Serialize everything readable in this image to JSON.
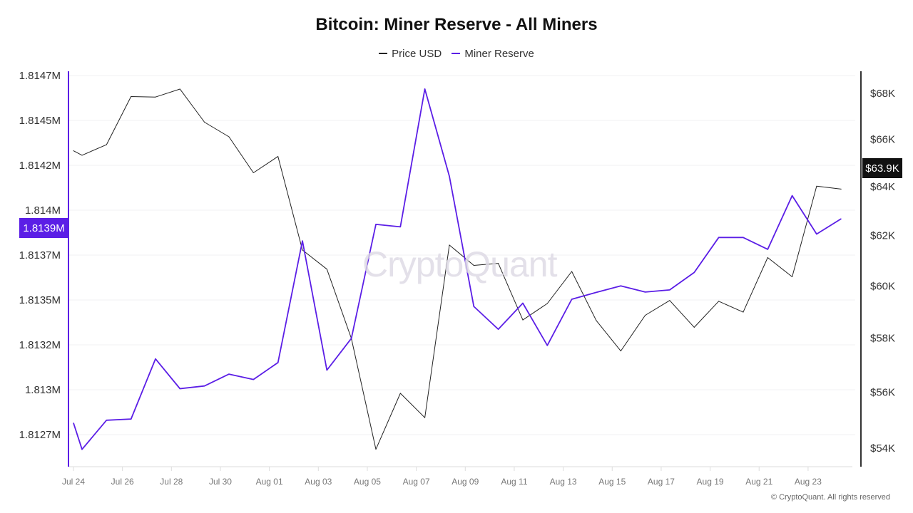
{
  "chart_data": {
    "type": "line",
    "title": "Bitcoin: Miner Reserve - All Miners",
    "legend": [
      "Price USD",
      "Miner Reserve"
    ],
    "legend_position": "top-center",
    "x_unit": "days since Jul 24",
    "x_tick_labels": [
      "Jul 24",
      "Jul 26",
      "Jul 28",
      "Jul 30",
      "Aug 01",
      "Aug 03",
      "Aug 05",
      "Aug 07",
      "Aug 09",
      "Aug 11",
      "Aug 13",
      "Aug 15",
      "Aug 17",
      "Aug 19",
      "Aug 21",
      "Aug 23"
    ],
    "left_axis": {
      "label": "Miner Reserve",
      "unit": "K BTC",
      "range": [
        1812.5,
        1814.85
      ],
      "ticks": [
        1812.75,
        1813.0,
        1813.25,
        1813.5,
        1813.75,
        1814.0,
        1814.25,
        1814.5,
        1814.75
      ],
      "tick_labels": [
        "1.8127M",
        "1.813M",
        "1.8132M",
        "1.8135M",
        "1.8137M",
        "1.814M",
        "1.8142M",
        "1.8145M",
        "1.8147M"
      ]
    },
    "right_axis": {
      "label": "Price USD",
      "scale": "log",
      "unit": "K USD",
      "range": [
        53.3,
        69.3
      ],
      "ticks": [
        54,
        56,
        58,
        60,
        62,
        64,
        66,
        68
      ],
      "tick_labels": [
        "$54K",
        "$56K",
        "$58K",
        "$60K",
        "$62K",
        "$64K",
        "$66K",
        "$68K"
      ]
    },
    "x": [
      0,
      0.35,
      1.35,
      2.35,
      3.35,
      4.35,
      5.35,
      6.35,
      7.35,
      8.35,
      9.35,
      10.35,
      11.35,
      12.35,
      13.35,
      14.35,
      15.35,
      16.35,
      17.35,
      18.35,
      19.35,
      20.35,
      21.35,
      22.35,
      23.35,
      24.35,
      25.35,
      26.35,
      27.35,
      28.35,
      29.35,
      30.35,
      31.35
    ],
    "series": [
      {
        "name": "Price USD",
        "axis": "right",
        "color": "#222222",
        "values": [
          65.51,
          65.32,
          65.77,
          67.86,
          67.84,
          68.19,
          66.74,
          66.11,
          64.58,
          65.27,
          61.42,
          60.66,
          57.99,
          53.96,
          55.96,
          55.08,
          61.62,
          60.81,
          60.89,
          58.69,
          59.32,
          60.57,
          58.67,
          57.52,
          58.87,
          59.44,
          58.41,
          59.41,
          58.99,
          61.12,
          60.36,
          64.02,
          63.9
        ]
      },
      {
        "name": "Miner Reserve",
        "axis": "left",
        "color": "#5b1ee6",
        "values": [
          1812.815,
          1812.668,
          1812.83,
          1812.837,
          1813.172,
          1813.006,
          1813.021,
          1813.087,
          1813.057,
          1813.151,
          1813.829,
          1813.109,
          1813.286,
          1813.921,
          1813.907,
          1814.675,
          1814.189,
          1813.464,
          1813.337,
          1813.482,
          1813.247,
          1813.504,
          1813.542,
          1813.578,
          1813.544,
          1813.556,
          1813.653,
          1813.848,
          1813.848,
          1813.782,
          1814.081,
          1813.867,
          1813.952
        ]
      }
    ],
    "current_labels": {
      "left": "1.8139M",
      "right": "$63.9K"
    },
    "grid": true
  },
  "watermark": "CryptoQuant",
  "copyright": "© CryptoQuant. All rights reserved"
}
